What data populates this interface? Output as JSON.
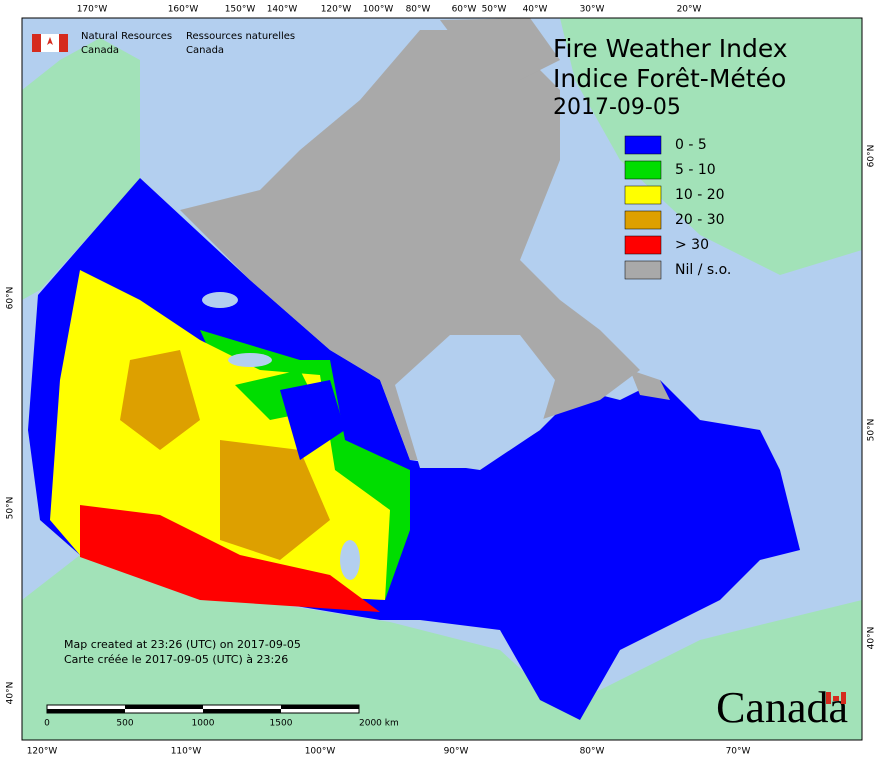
{
  "header": {
    "agency_en": [
      "Natural Resources",
      "Canada"
    ],
    "agency_fr": [
      "Ressources naturelles",
      "Canada"
    ]
  },
  "title": [
    "Fire Weather Index",
    "Indice Forêt-Météo",
    "2017-09-05"
  ],
  "legend": [
    {
      "label": "0 - 5",
      "color": "#0000ff"
    },
    {
      "label": "5 - 10",
      "color": "#00dd00"
    },
    {
      "label": "10 - 20",
      "color": "#ffff00"
    },
    {
      "label": "20 - 30",
      "color": "#dda000"
    },
    {
      "label": "> 30",
      "color": "#ff0000"
    },
    {
      "label": "Nil / s.o.",
      "color": "#a9a9a9"
    }
  ],
  "graticule": {
    "top": [
      "170°W",
      "160°W",
      "150°W",
      "140°W",
      "120°W",
      "100°W",
      "80°W",
      "60°W",
      "50°W",
      "40°W",
      "30°W",
      "20°W"
    ],
    "bottom": [
      "120°W",
      "110°W",
      "100°W",
      "90°W",
      "80°W",
      "70°W"
    ],
    "left": [
      "60°N",
      "50°N",
      "40°N"
    ],
    "right": [
      "60°N",
      "50°N",
      "40°N"
    ]
  },
  "footer": [
    "Map created at 23:26 (UTC) on 2017-09-05",
    "Carte créée le 2017-09-05 (UTC) à 23:26"
  ],
  "scale_bar": [
    "0",
    "500",
    "1000",
    "1500",
    "2000 km"
  ],
  "wordmark": "Canada"
}
